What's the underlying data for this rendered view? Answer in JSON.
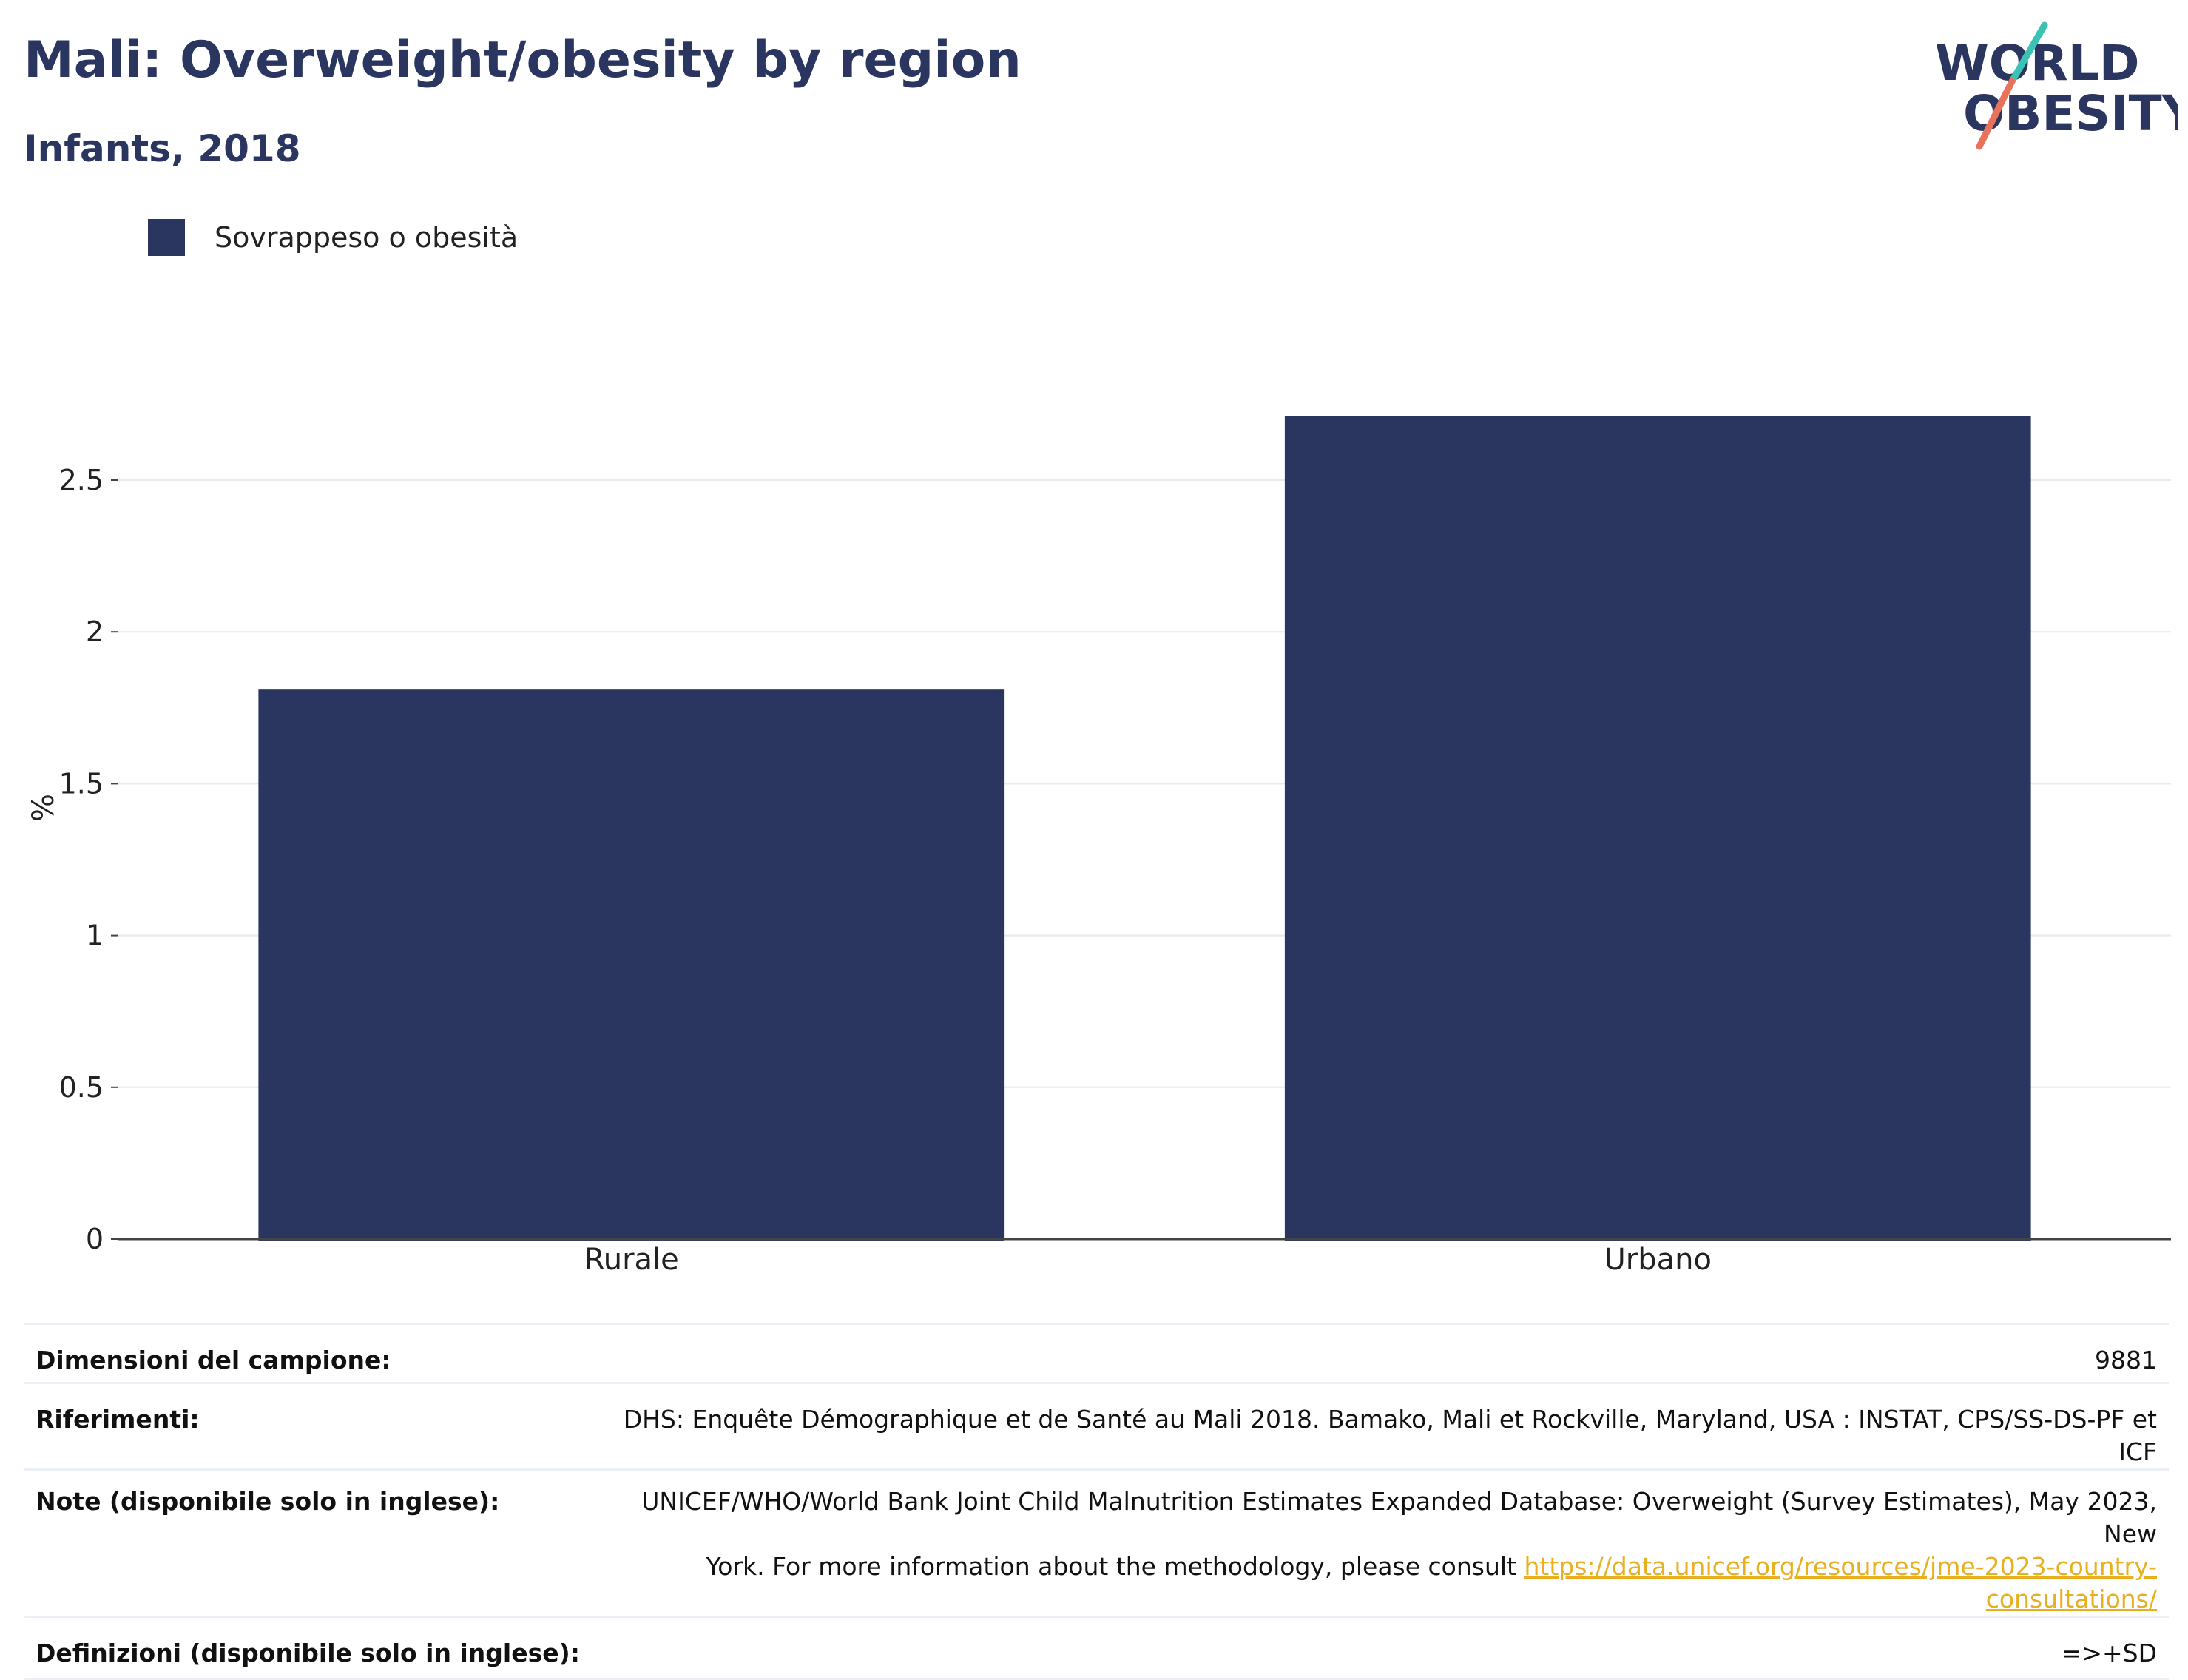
{
  "header": {
    "title": "Mali: Overweight/obesity by region",
    "subtitle": "Infants, 2018"
  },
  "logo": {
    "line1": "WORLD",
    "line2": "OBESITY",
    "slash_colors": [
      "#3cc2b4",
      "#e8735a"
    ]
  },
  "colors": {
    "bar": "#2a3660",
    "title": "#2a3660",
    "grid": "#e8e8ee",
    "link": "#e8b020"
  },
  "chart_data": {
    "type": "bar",
    "categories": [
      "Rurale",
      "Urbano"
    ],
    "series": [
      {
        "name": "Sovrappeso o obesità",
        "values": [
          1.81,
          2.71
        ]
      }
    ],
    "ylabel": "%",
    "ylim": [
      0,
      2.8
    ],
    "yticks": [
      0,
      0.5,
      1,
      1.5,
      2,
      2.5
    ],
    "ytick_labels": [
      "0",
      "0.5",
      "1",
      "1.5",
      "2",
      "2.5"
    ],
    "grid": true,
    "legend_position": "top-left"
  },
  "info": {
    "sample_label": "Dimensioni del campione:",
    "sample_value": "9881",
    "refs_label": "Riferimenti:",
    "refs_value": "DHS: Enquête Démographique et de Santé au Mali 2018. Bamako, Mali et Rockville, Maryland, USA : INSTAT, CPS/SS-DS-PF et ICF",
    "notes_label": "Note (disponibile solo in inglese):",
    "notes_line1": "UNICEF/WHO/World Bank Joint Child Malnutrition Estimates Expanded Database: Overweight (Survey Estimates), May 2023, New",
    "notes_line2": "York. For more information about the methodology, please consult",
    "notes_link": "https://data.unicef.org/resources/jme-2023-country-consultations/",
    "defs_label": "Definizioni (disponibile solo in inglese):",
    "defs_value": "=>+SD"
  }
}
